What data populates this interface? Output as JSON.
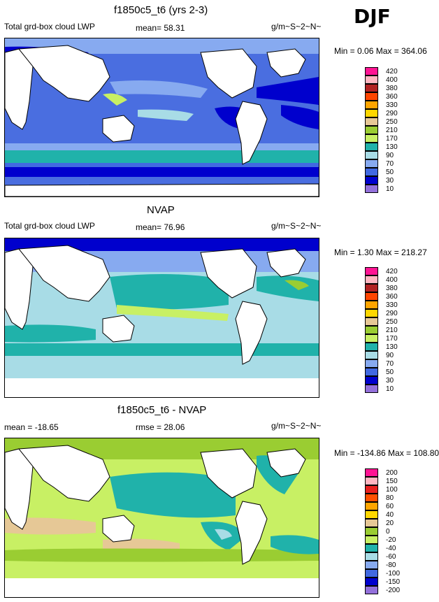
{
  "season": "DJF",
  "panels": [
    {
      "title": "f1850c5_t6 (yrs 2-3)",
      "left": "Total grd-box cloud LWP",
      "mid": "mean=  58.31",
      "units": "g/m~S~2~N~",
      "minmax": "Min =   0.06 Max = 364.06",
      "levels": [
        "420",
        "400",
        "380",
        "360",
        "330",
        "290",
        "250",
        "210",
        "170",
        "130",
        "90",
        "70",
        "50",
        "30",
        "10"
      ],
      "colors": [
        "#ff1493",
        "#ffb6c1",
        "#b22222",
        "#ff4500",
        "#ffa500",
        "#ffd700",
        "#e6c896",
        "#9acd32",
        "#c8f064",
        "#20b2aa",
        "#a8dce6",
        "#87aaf0",
        "#4169e1",
        "#0000cd",
        "#9370db"
      ]
    },
    {
      "title": "NVAP",
      "left": "Total grd-box cloud LWP",
      "mid": "mean=  76.96",
      "units": "g/m~S~2~N~",
      "minmax": "Min =   1.30 Max = 218.27",
      "levels": [
        "420",
        "400",
        "380",
        "360",
        "330",
        "290",
        "250",
        "210",
        "170",
        "130",
        "90",
        "70",
        "50",
        "30",
        "10"
      ],
      "colors": [
        "#ff1493",
        "#ffb6c1",
        "#b22222",
        "#ff4500",
        "#ffa500",
        "#ffd700",
        "#e6c896",
        "#9acd32",
        "#c8f064",
        "#20b2aa",
        "#a8dce6",
        "#87aaf0",
        "#4169e1",
        "#0000cd",
        "#9370db"
      ]
    },
    {
      "title": "f1850c5_t6 - NVAP",
      "left": "mean = -18.65",
      "mid": "rmse =  28.06",
      "units": "g/m~S~2~N~",
      "minmax": "Min = -134.86 Max = 108.80",
      "levels": [
        "200",
        "150",
        "100",
        "80",
        "60",
        "40",
        "20",
        "0",
        "-20",
        "-40",
        "-60",
        "-80",
        "-100",
        "-150",
        "-200"
      ],
      "colors": [
        "#ff1493",
        "#ffb6c1",
        "#e8201e",
        "#ff5000",
        "#ffa500",
        "#ffd700",
        "#e6c896",
        "#9acd32",
        "#c8f064",
        "#20b2aa",
        "#a8dce6",
        "#87aaf0",
        "#4169e1",
        "#0000cd",
        "#9370db"
      ]
    }
  ]
}
